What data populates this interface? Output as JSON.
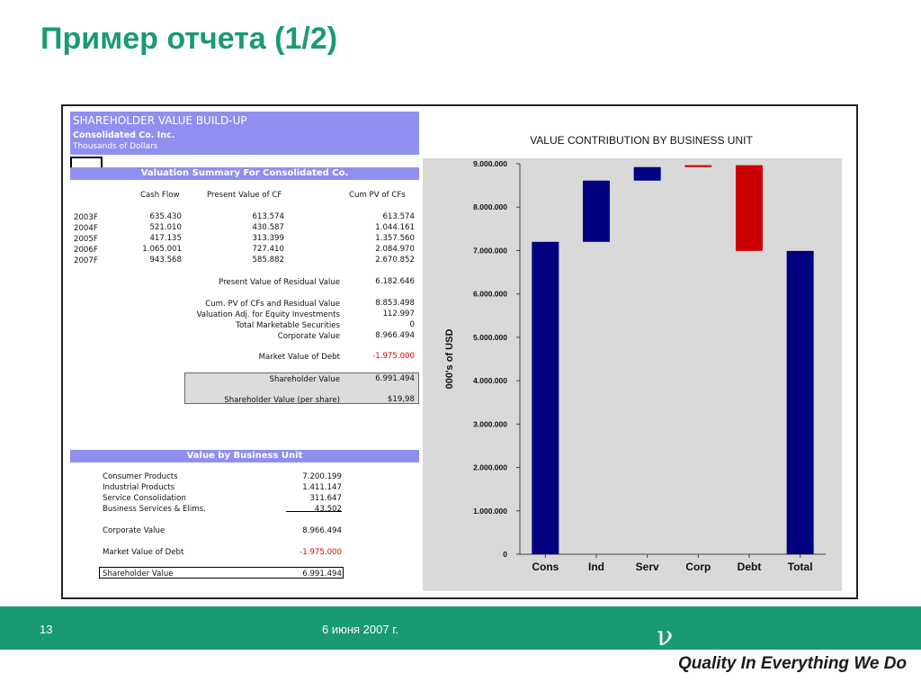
{
  "slide": {
    "title": "Пример отчета (1/2)",
    "page_number": "13",
    "date": "6 июня 2007 г.",
    "logo_glyph": "ν",
    "tagline": "Quality In Everything We Do",
    "accent_color": "#1a9a73"
  },
  "sheet": {
    "header": {
      "title": "SHAREHOLDER VALUE BUILD-UP",
      "company": "Consolidated Co. Inc.",
      "units": "Thousands of Dollars"
    },
    "summary": {
      "band": "Valuation Summary For Consolidated Co.",
      "columns": [
        "Cash Flow",
        "Present Value of CF",
        "Cum PV of CFs"
      ],
      "rows": [
        {
          "year": "2003F",
          "cf": "635.430",
          "pv": "613.574",
          "cum": "613.574"
        },
        {
          "year": "2004F",
          "cf": "521.010",
          "pv": "430.587",
          "cum": "1.044.161"
        },
        {
          "year": "2005F",
          "cf": "417.135",
          "pv": "313.399",
          "cum": "1.357.560"
        },
        {
          "year": "2006F",
          "cf": "1.065.001",
          "pv": "727.410",
          "cum": "2.084.970"
        },
        {
          "year": "2007F",
          "cf": "943.568",
          "pv": "585.882",
          "cum": "2.670.852"
        }
      ],
      "pv_residual_label": "Present Value of Residual Value",
      "pv_residual_value": "6.182.646",
      "cum_pv_label": "Cum. PV of CFs and Residual Value",
      "cum_pv_value": "8.853.498",
      "adj_label": "Valuation Adj. for Equity Investments",
      "adj_value": "112.997",
      "tms_label": "Total Marketable Securities",
      "tms_value": "0",
      "corp_label": "Corporate Value",
      "corp_value": "8.966.494",
      "debt_label": "Market Value of Debt",
      "debt_value": "-1.975.000",
      "sv_label": "Shareholder Value",
      "sv_value": "6.991.494",
      "svps_label": "Shareholder Value (per share)",
      "svps_value": "$19,98"
    },
    "units": {
      "band": "Value by Business Unit",
      "items": [
        {
          "label": "Consumer Products",
          "value": "7.200.199"
        },
        {
          "label": "Industrial Products",
          "value": "1.411.147"
        },
        {
          "label": "Service Consolidation",
          "value": "311.647"
        },
        {
          "label": "Business Services & Elims.",
          "value": "43.502"
        }
      ],
      "corp_label": "Corporate Value",
      "corp_value": "8.966.494",
      "debt_label": "Market Value of Debt",
      "debt_value": "-1.975.000",
      "sv_label": "Shareholder Value",
      "sv_value": "6.991.494"
    }
  },
  "chart_data": {
    "type": "bar",
    "title": "VALUE CONTRIBUTION BY BUSINESS UNIT",
    "ylabel": "000's of USD",
    "xlabel": "",
    "ylim": [
      0,
      9000000
    ],
    "yticks": [
      "0",
      "1.000.000",
      "2.000.000",
      "3.000.000",
      "4.000.000",
      "5.000.000",
      "6.000.000",
      "7.000.000",
      "8.000.000",
      "9.000.000"
    ],
    "categories": [
      "Cons",
      "Ind",
      "Serv",
      "Corp",
      "Debt",
      "Total"
    ],
    "bars": [
      {
        "category": "Cons",
        "low": 0,
        "high": 7200199,
        "color": "#000080"
      },
      {
        "category": "Ind",
        "low": 7200199,
        "high": 8611346,
        "color": "#000080"
      },
      {
        "category": "Serv",
        "low": 8611346,
        "high": 8922993,
        "color": "#000080"
      },
      {
        "category": "Corp",
        "low": 8922993,
        "high": 8966494,
        "color": "#cc0000"
      },
      {
        "category": "Debt",
        "low": 6991494,
        "high": 8966494,
        "color": "#cc0000"
      },
      {
        "category": "Total",
        "low": 0,
        "high": 6991494,
        "color": "#000080"
      }
    ],
    "grid": false,
    "legend": "none",
    "background": "#d9d9d9"
  }
}
